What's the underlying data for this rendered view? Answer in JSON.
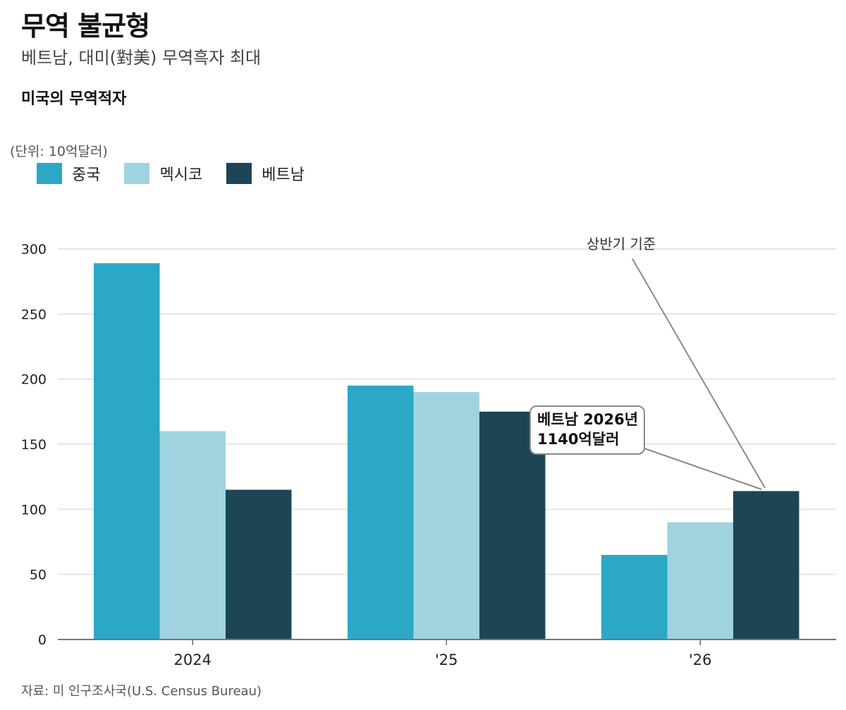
{
  "header": {
    "title": "무역 불균형",
    "subtitle": "베트남, 대미(對美) 무역흑자 최대",
    "chart_title": "미국의 무역적자"
  },
  "unit_label": "(단위: 10억달러)",
  "source": "자료: 미 인구조사국(U.S. Census Bureau)",
  "annotations": {
    "period_note": "상반기 기준",
    "callout_line1": "베트남 2026년",
    "callout_line2": "1140억달러"
  },
  "chart_data": {
    "type": "bar",
    "title": "미국의 무역적자",
    "subtitle": "베트남, 대미(對美) 무역흑자 최대",
    "ylabel": "(단위: 10억달러)",
    "categories": [
      "2024",
      "'25",
      "'26"
    ],
    "series": [
      {
        "name": "중국",
        "color": "#2aa8c6",
        "values": [
          289,
          195,
          65
        ]
      },
      {
        "name": "멕시코",
        "color": "#9fd3e0",
        "values": [
          160,
          190,
          90
        ]
      },
      {
        "name": "베트남",
        "color": "#1c4656",
        "values": [
          115,
          175,
          114
        ]
      }
    ],
    "ylim": [
      0,
      300
    ],
    "yticks": [
      0,
      50,
      100,
      150,
      200,
      250,
      300
    ],
    "grid": true,
    "legend": "top-left",
    "annotations": [
      {
        "text": "상반기 기준",
        "category": "'26",
        "series": "베트남"
      },
      {
        "text": "베트남 2026년 1140억달러",
        "category": "'26",
        "series": "베트남",
        "value": 114
      }
    ]
  }
}
